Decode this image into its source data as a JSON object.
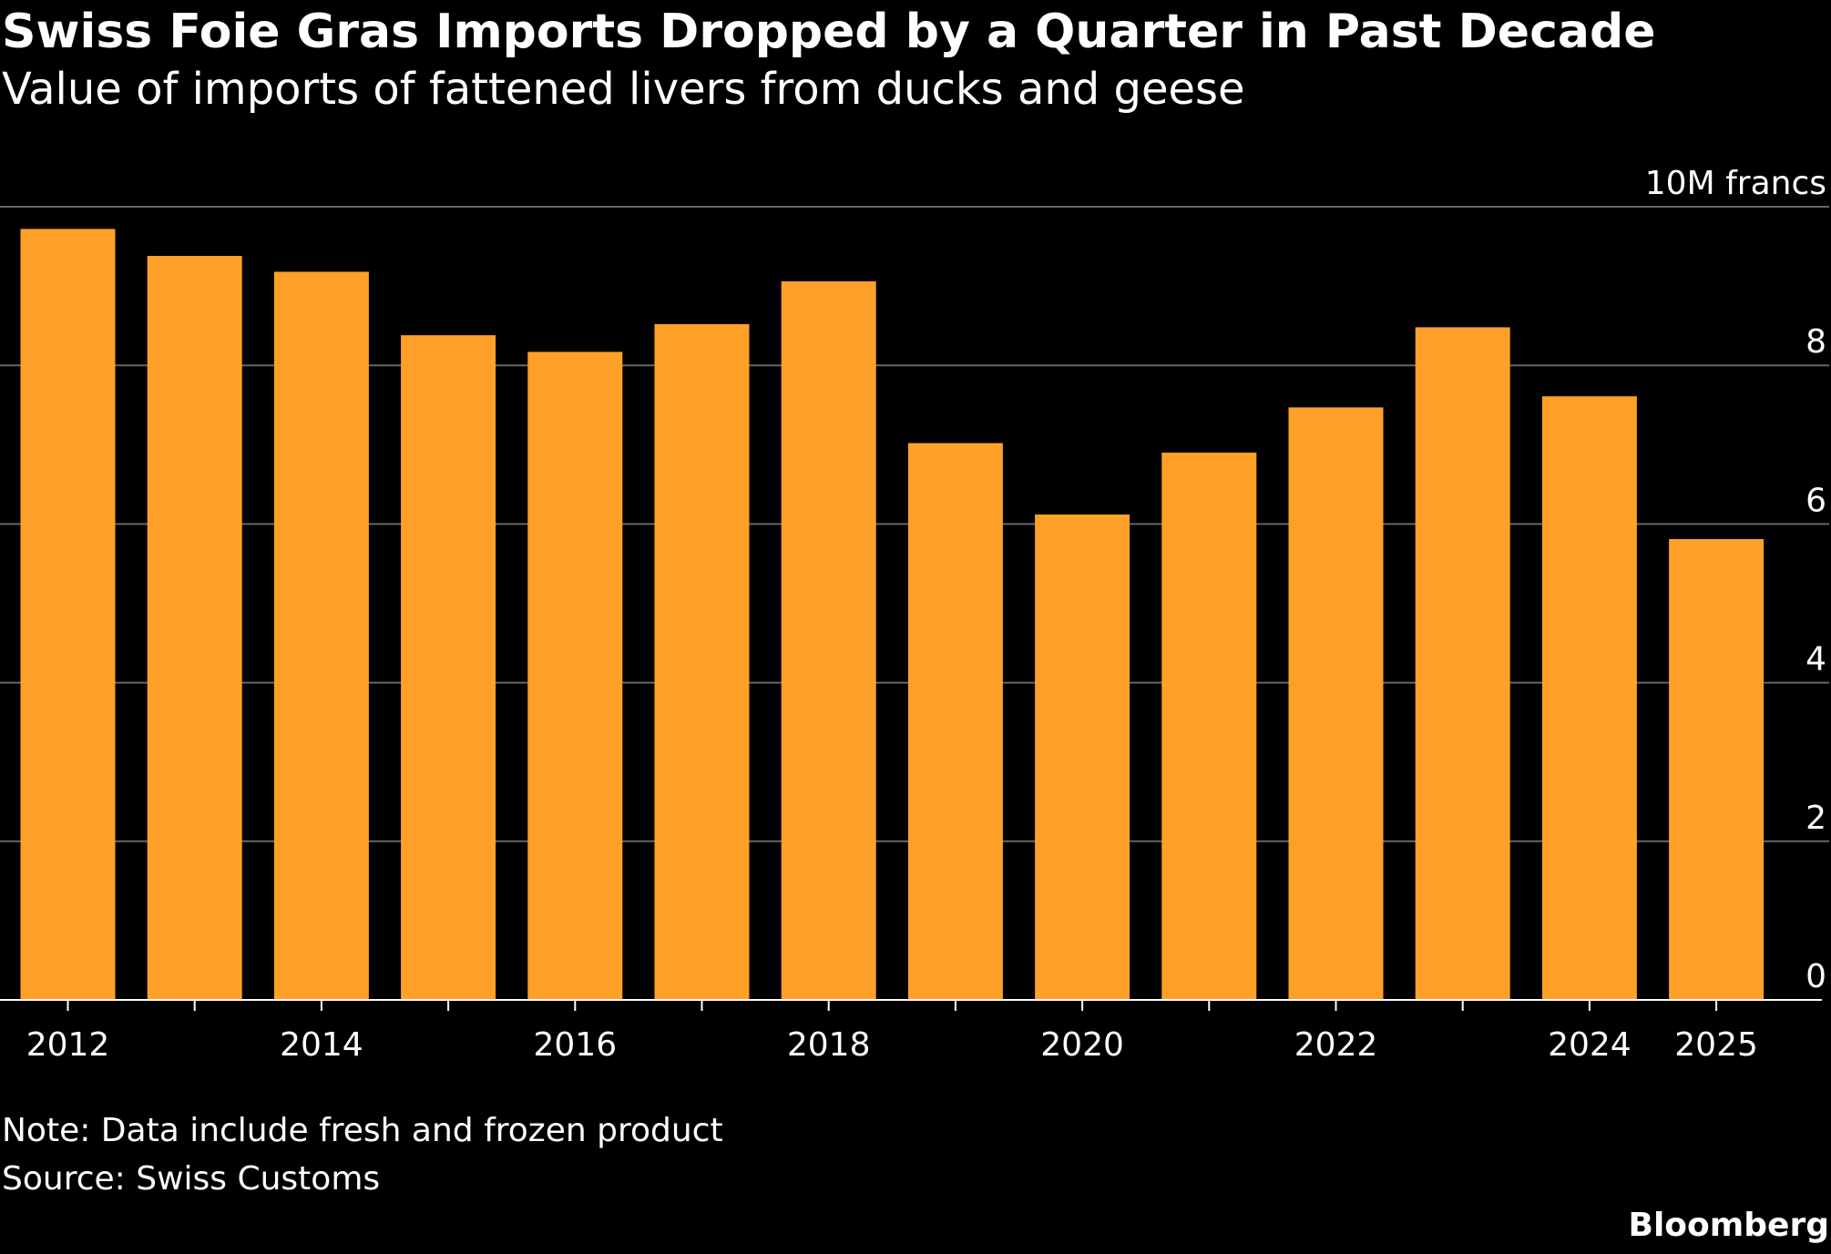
{
  "header": {
    "title": "Swiss Foie Gras Imports Dropped by a Quarter in Past Decade",
    "subtitle": "Value of imports of fattened livers from ducks and geese"
  },
  "footer": {
    "note": "Note: Data include fresh and frozen product",
    "source": "Source: Swiss Customs",
    "brand": "Bloomberg"
  },
  "colors": {
    "background": "#000000",
    "bar": "#FFA028",
    "gridline": "#666666",
    "axis": "#ffffff",
    "text": "#ffffff"
  },
  "chart_data": {
    "type": "bar",
    "title": "Swiss Foie Gras Imports Dropped by a Quarter in Past Decade",
    "subtitle": "Value of imports of fattened livers from ducks and geese",
    "unit_label": "10M francs",
    "xlabel": "",
    "ylabel": "",
    "categories": [
      "2012",
      "2013",
      "2014",
      "2015",
      "2016",
      "2017",
      "2018",
      "2019",
      "2020",
      "2021",
      "2022",
      "2023",
      "2024",
      "2025"
    ],
    "values": [
      9.72,
      9.38,
      9.18,
      8.38,
      8.17,
      8.52,
      9.06,
      7.02,
      6.12,
      6.9,
      7.47,
      8.48,
      7.61,
      5.81
    ],
    "x_tick_labels": [
      "2012",
      "2014",
      "2016",
      "2018",
      "2020",
      "2022",
      "2024",
      "2025"
    ],
    "y_ticks": [
      0,
      2,
      4,
      6,
      8
    ],
    "ylim": [
      0,
      10
    ],
    "grid": true,
    "legend": false
  }
}
